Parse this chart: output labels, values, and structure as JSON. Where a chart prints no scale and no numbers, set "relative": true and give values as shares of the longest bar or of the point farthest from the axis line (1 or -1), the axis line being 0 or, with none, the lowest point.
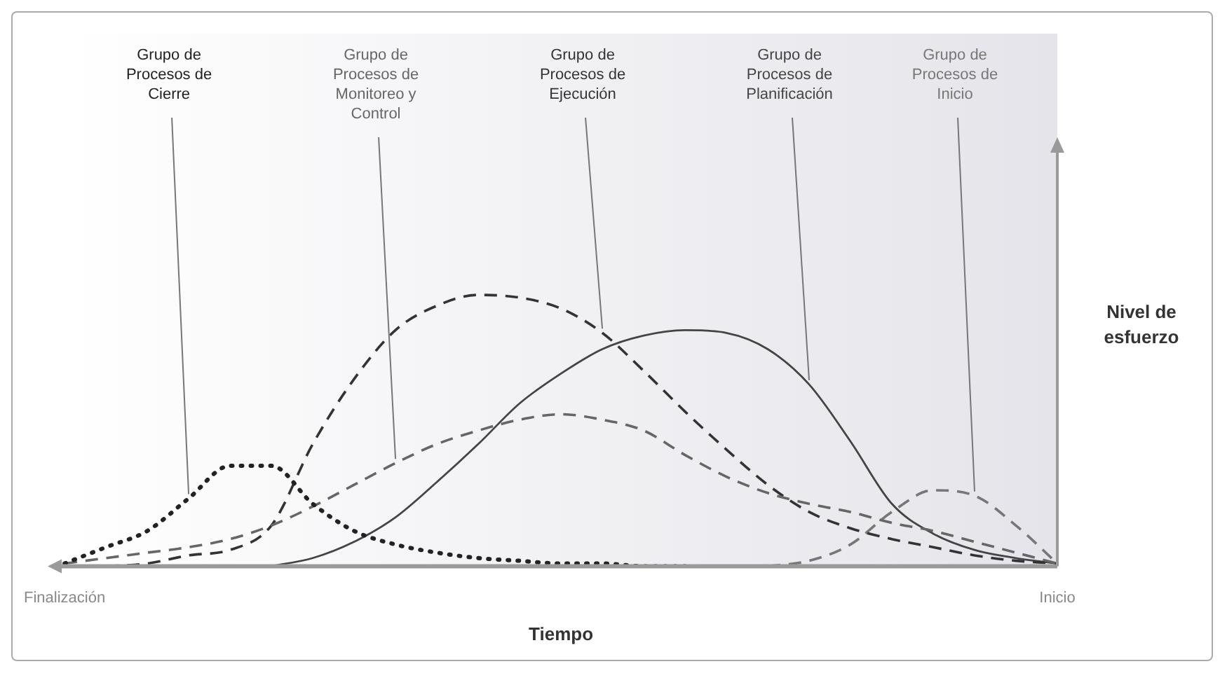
{
  "chart_data": {
    "type": "line",
    "relative": true,
    "xlabel": "Tiempo",
    "ylabel": "Nivel de esfuerzo",
    "categories": [
      "Finalización",
      null,
      null,
      null,
      null,
      null,
      null,
      null,
      null,
      null,
      null,
      null,
      null,
      null,
      null,
      null,
      null,
      null,
      null,
      null,
      null,
      null,
      null,
      null,
      "Inicio"
    ],
    "series": [
      {
        "name": "Grupo de Procesos de Cierre",
        "color": "#222222",
        "line_style": "dotted",
        "values": [
          0.01,
          0.07,
          0.13,
          0.25,
          0.37,
          0.37,
          0.23,
          0.13,
          0.08,
          0.05,
          0.03,
          0.02,
          0.01,
          0.01,
          0,
          0,
          null,
          null,
          null,
          null,
          null,
          null,
          null,
          null,
          null
        ]
      },
      {
        "name": "Grupo de Procesos de Monitoreo y Control",
        "color": "#666666",
        "line_style": "dashed",
        "values": [
          0.01,
          0.03,
          0.05,
          0.07,
          0.1,
          0.15,
          0.22,
          0.3,
          0.38,
          0.45,
          0.5,
          0.54,
          0.56,
          0.54,
          0.5,
          0.41,
          0.33,
          0.27,
          0.23,
          0.2,
          0.16,
          0.13,
          0.09,
          0.05,
          0.01
        ]
      },
      {
        "name": "Grupo de Procesos de Ejecución",
        "color": "#333333",
        "line_style": "dashed",
        "values": [
          null,
          0,
          0.01,
          0.04,
          0.06,
          0.15,
          0.45,
          0.69,
          0.87,
          0.96,
          1,
          0.99,
          0.95,
          0.86,
          0.72,
          0.57,
          0.43,
          0.3,
          0.2,
          0.14,
          0.1,
          0.07,
          0.04,
          0.02,
          0.01
        ]
      },
      {
        "name": "Grupo de Procesos de Planificación",
        "color": "#444444",
        "line_style": "solid",
        "values": [
          null,
          null,
          null,
          null,
          null,
          0,
          0.03,
          0.09,
          0.18,
          0.31,
          0.45,
          0.6,
          0.71,
          0.8,
          0.85,
          0.87,
          0.86,
          0.8,
          0.67,
          0.46,
          0.23,
          0.12,
          0.06,
          0.03,
          0.01
        ]
      },
      {
        "name": "Grupo de Procesos de Inicio",
        "color": "#777777",
        "line_style": "dashed",
        "values": [
          null,
          null,
          null,
          null,
          null,
          null,
          null,
          null,
          null,
          null,
          null,
          null,
          null,
          null,
          null,
          null,
          null,
          0,
          0.02,
          0.08,
          0.2,
          0.28,
          0.26,
          0.15,
          0.01
        ]
      }
    ]
  }
}
